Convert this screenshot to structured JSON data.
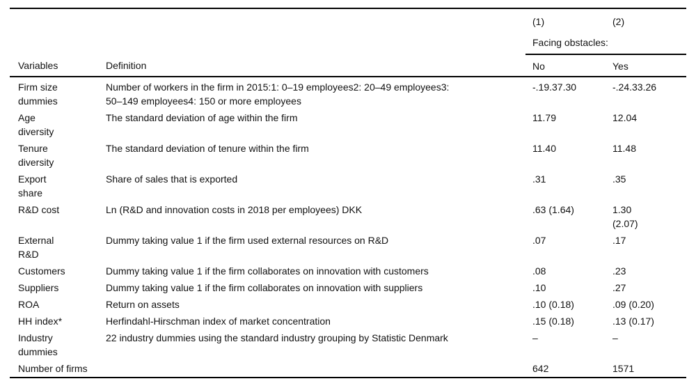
{
  "table": {
    "col_numbers": [
      "(1)",
      "(2)"
    ],
    "group_header": "Facing obstacles:",
    "col1_header": "Variables",
    "col2_header": "Definition",
    "col3_header": "No",
    "col4_header": "Yes",
    "rows": [
      {
        "variable": "Firm size\ndummies",
        "definition": "Number of workers in the firm in 2015:1: 0–19 employees2: 20–49 employees3:\n50–149 employees4: 150 or more employees",
        "no": "-.19.37.30",
        "yes": "-.24.33.26"
      },
      {
        "variable": "Age\ndiversity",
        "definition": "The standard deviation of age within the firm",
        "no": "11.79",
        "yes": "12.04"
      },
      {
        "variable": "Tenure\ndiversity",
        "definition": "The standard deviation of tenure within the firm",
        "no": "11.40",
        "yes": "11.48"
      },
      {
        "variable": "Export\nshare",
        "definition": "Share of sales that is exported",
        "no": ".31",
        "yes": ".35"
      },
      {
        "variable": "R&D cost",
        "definition": "Ln (R&D and innovation costs in 2018 per employees) DKK",
        "no": ".63 (1.64)",
        "yes": "1.30\n(2.07)"
      },
      {
        "variable": "External\nR&D",
        "definition": "Dummy taking value 1 if the firm used external resources on R&D",
        "no": ".07",
        "yes": ".17"
      },
      {
        "variable": "Customers",
        "definition": "Dummy taking value 1 if the firm collaborates on innovation with customers",
        "no": ".08",
        "yes": ".23"
      },
      {
        "variable": "Suppliers",
        "definition": "Dummy taking value 1 if the firm collaborates on innovation with suppliers",
        "no": ".10",
        "yes": ".27"
      },
      {
        "variable": "ROA",
        "definition": "Return on assets",
        "no": ".10 (0.18)",
        "yes": ".09 (0.20)"
      },
      {
        "variable": "HH index*",
        "definition": "Herfindahl-Hirschman index of market concentration",
        "no": ".15 (0.18)",
        "yes": ".13 (0.17)"
      },
      {
        "variable": "Industry\ndummies",
        "definition": "22 industry dummies using the standard industry grouping by Statistic Denmark",
        "no": "–",
        "yes": "–"
      },
      {
        "variable": "Number of firms",
        "definition": "",
        "no": "642",
        "yes": "1571"
      }
    ]
  }
}
